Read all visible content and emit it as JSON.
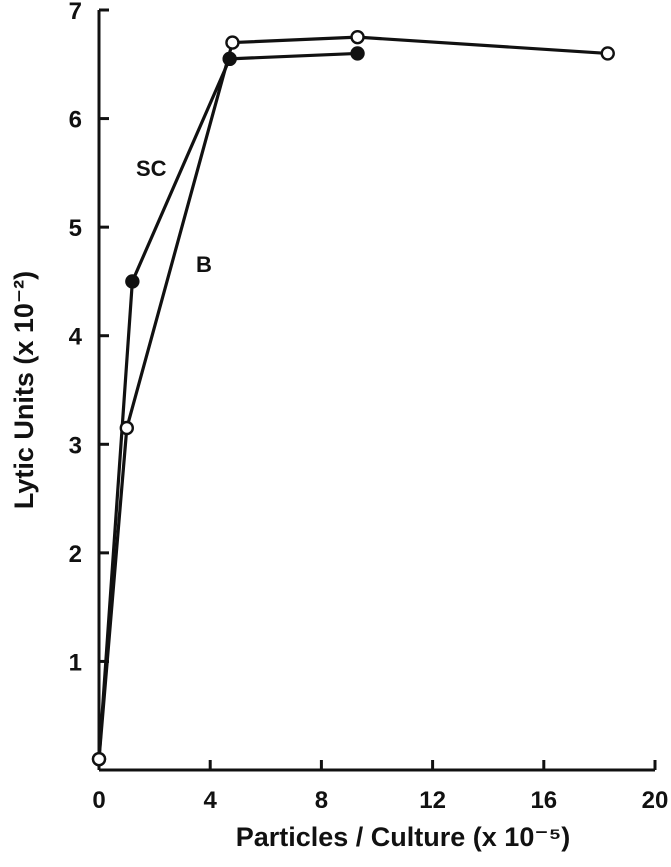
{
  "chart_data": {
    "type": "line",
    "xlabel": "Particles / Culture (x 10⁻⁵)",
    "ylabel": "Lytic Units (x 10⁻²)",
    "xlim": [
      0,
      20
    ],
    "ylim": [
      0,
      7
    ],
    "x_ticks": [
      0,
      4,
      8,
      12,
      16,
      20
    ],
    "y_ticks": [
      1,
      2,
      3,
      4,
      5,
      6,
      7
    ],
    "grid": false,
    "series": [
      {
        "name": "SC",
        "marker": "filled-circle",
        "color": "#111111",
        "points": [
          [
            0,
            0.1
          ],
          [
            1.2,
            4.5
          ],
          [
            4.7,
            6.55
          ],
          [
            9.3,
            6.6
          ]
        ]
      },
      {
        "name": "B",
        "marker": "open-circle",
        "color": "#111111",
        "points": [
          [
            0,
            0.1
          ],
          [
            1.0,
            3.15
          ],
          [
            4.8,
            6.7
          ],
          [
            9.3,
            6.75
          ],
          [
            18.3,
            6.6
          ]
        ]
      }
    ]
  }
}
